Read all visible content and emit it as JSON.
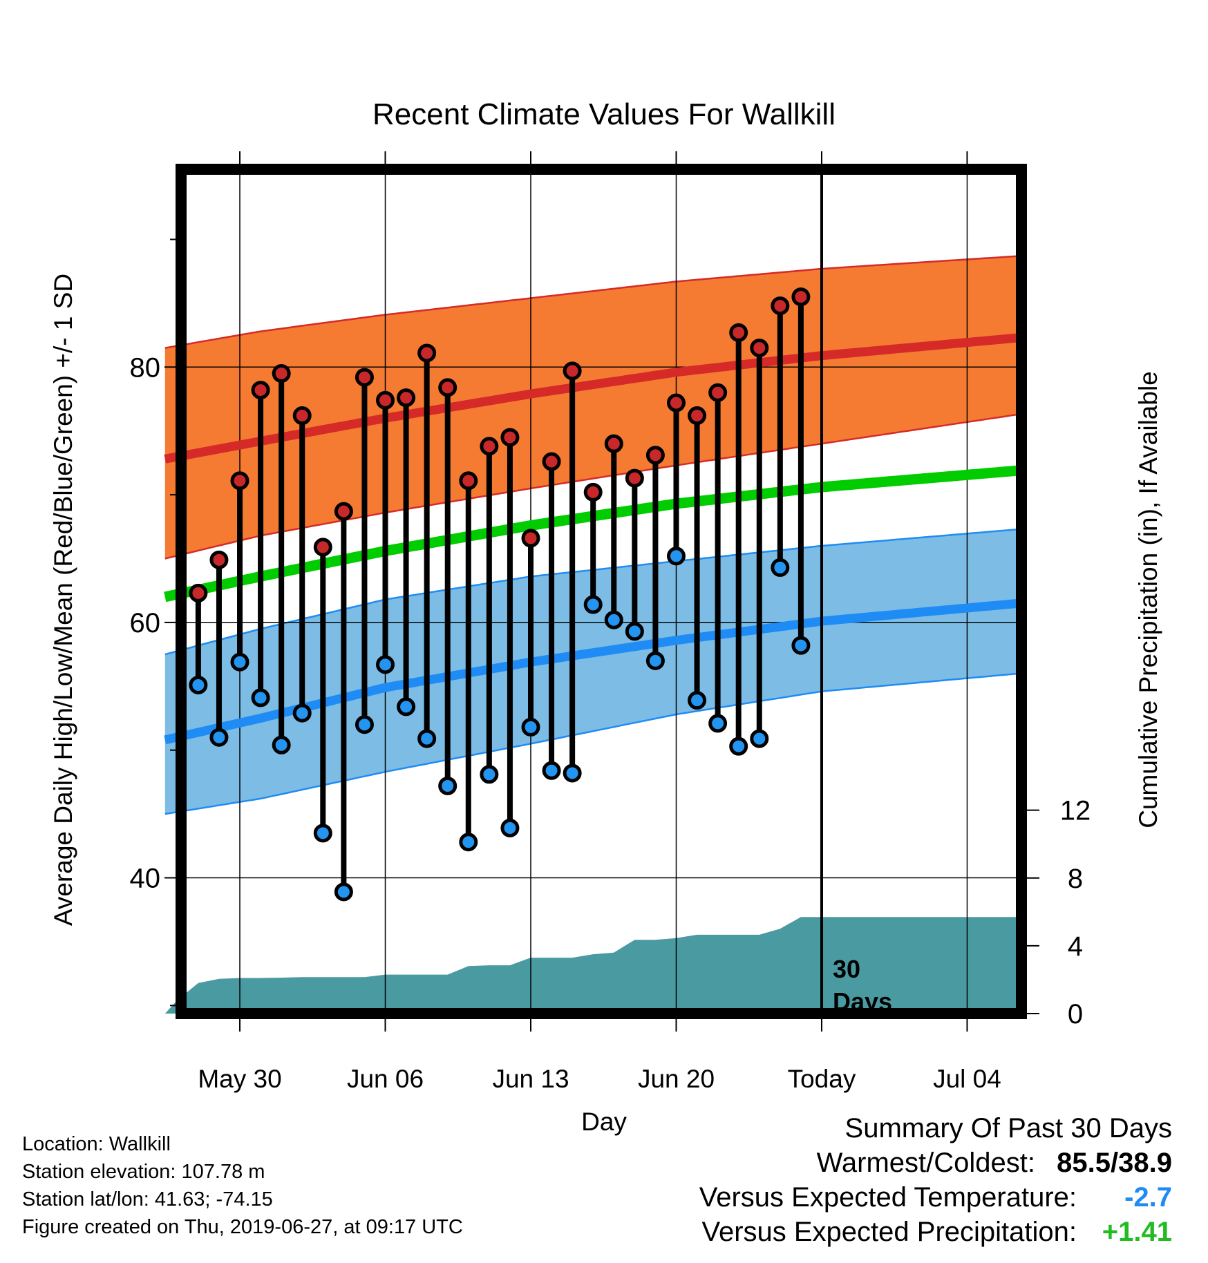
{
  "chart_data": {
    "type": "line",
    "title": "Recent Climate Values For Wallkill",
    "xlabel": "Day",
    "ylabel": "Average Daily High/Low/Mean (Red/Blue/Green) +/- 1 SD",
    "y2label": "Cumulative Precipitation (in), If Available",
    "x_range_days": [
      -1.6,
      39.5
    ],
    "ylim": [
      29,
      94
    ],
    "y2lim": [
      0,
      24
    ],
    "yticks": [
      40,
      60,
      80
    ],
    "y2ticks": [
      0,
      4,
      8,
      12
    ],
    "xticks": [
      {
        "day": 2,
        "label": "May 30"
      },
      {
        "day": 9,
        "label": "Jun 06"
      },
      {
        "day": 16,
        "label": "Jun 13"
      },
      {
        "day": 23,
        "label": "Jun 20"
      },
      {
        "day": 30,
        "label": "Today"
      },
      {
        "day": 37,
        "label": "Jul 04"
      }
    ],
    "today_marker": {
      "day": 30,
      "label_line1": "30",
      "label_line2": "Days"
    },
    "normals": {
      "days": [
        -1.6,
        3,
        9,
        16,
        23,
        30,
        39.5
      ],
      "high_mean": [
        72.8,
        74.2,
        76.0,
        77.9,
        79.6,
        80.9,
        82.3
      ],
      "high_upper": [
        81.5,
        82.8,
        84.1,
        85.4,
        86.7,
        87.7,
        88.7
      ],
      "high_lower": [
        65.0,
        66.8,
        68.6,
        70.5,
        72.3,
        74.0,
        76.3
      ],
      "mean": [
        62.0,
        63.6,
        65.6,
        67.6,
        69.3,
        70.6,
        71.9
      ],
      "low_mean": [
        50.8,
        52.5,
        54.9,
        56.9,
        58.6,
        60.1,
        61.5
      ],
      "low_upper": [
        57.5,
        59.5,
        61.8,
        63.6,
        64.8,
        66.0,
        67.3
      ],
      "low_lower": [
        45.0,
        46.2,
        48.3,
        50.5,
        52.8,
        54.6,
        56.0
      ]
    },
    "observations": {
      "days": [
        0,
        1,
        2,
        3,
        4,
        5,
        6,
        7,
        8,
        9,
        10,
        11,
        12,
        13,
        14,
        15,
        16,
        17,
        18,
        19,
        20,
        21,
        22,
        23,
        24,
        25,
        26,
        27,
        28,
        29
      ],
      "high": [
        62.3,
        64.9,
        71.1,
        78.2,
        79.5,
        76.2,
        65.9,
        68.7,
        79.2,
        77.4,
        77.6,
        81.1,
        78.4,
        71.1,
        73.8,
        74.5,
        66.6,
        72.6,
        79.7,
        70.2,
        74.0,
        71.3,
        73.1,
        77.2,
        76.2,
        78.0,
        82.7,
        81.5,
        84.8,
        85.5
      ],
      "low": [
        55.1,
        51.0,
        56.9,
        54.1,
        50.4,
        52.9,
        43.5,
        38.9,
        52.0,
        56.7,
        53.4,
        50.9,
        47.2,
        42.8,
        48.1,
        43.9,
        51.8,
        48.4,
        48.2,
        61.4,
        60.2,
        59.3,
        57.0,
        65.2,
        53.9,
        52.1,
        50.3,
        50.9,
        64.3,
        58.2
      ]
    },
    "precip_cumulative": {
      "days": [
        -1.6,
        -1,
        0,
        1,
        2,
        3,
        4,
        5,
        6,
        7,
        8,
        9,
        10,
        11,
        12,
        13,
        14,
        15,
        16,
        17,
        18,
        19,
        20,
        21,
        22,
        23,
        24,
        25,
        26,
        27,
        28,
        29,
        39.5
      ],
      "values": [
        0.0,
        0.8,
        1.8,
        2.05,
        2.1,
        2.1,
        2.12,
        2.15,
        2.15,
        2.15,
        2.15,
        2.3,
        2.3,
        2.3,
        2.3,
        2.8,
        2.85,
        2.85,
        3.3,
        3.3,
        3.3,
        3.5,
        3.6,
        4.35,
        4.35,
        4.45,
        4.65,
        4.65,
        4.65,
        4.65,
        5.0,
        5.7,
        5.7
      ]
    },
    "colors": {
      "high_band": "#f47b31",
      "high_line": "#d52a28",
      "mean_line": "#00cc00",
      "low_band": "#7dbce4",
      "low_line": "#1e8cf4",
      "band_edge_high": "#d52a28",
      "band_edge_low": "#1e8cf4",
      "precip_fill": "#4a9aa2",
      "high_marker": "#c8282a",
      "low_marker": "#2394f0"
    }
  },
  "info": {
    "location": "Location: Wallkill",
    "elevation": "Station elevation: 107.78 m",
    "latlon": "Station lat/lon: 41.63; -74.15",
    "created": "Figure created on Thu, 2019-06-27, at 09:17 UTC"
  },
  "summary": {
    "title": "Summary Of Past 30 Days",
    "warm_cold_label": "Warmest/Coldest:",
    "warm_cold_value": "85.5/38.9",
    "temp_label": "Versus Expected Temperature:",
    "temp_value": "-2.7",
    "temp_color": "#1e8cf4",
    "precip_label": "Versus Expected Precipitation:",
    "precip_value": "+1.41",
    "precip_color": "#22bb22"
  }
}
